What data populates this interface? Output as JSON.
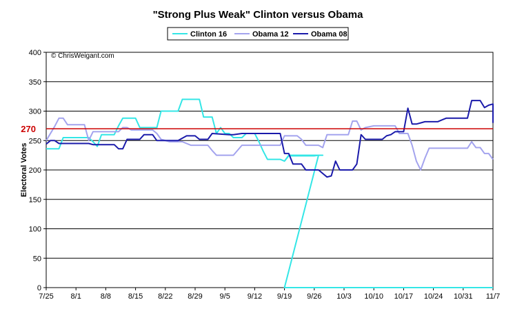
{
  "chart_data": {
    "type": "line",
    "title": "\"Strong Plus Weak\" Clinton versus Obama",
    "ylabel": "Electoral Votes",
    "xlabel": "",
    "ylim": [
      0,
      400
    ],
    "yticks": [
      0,
      50,
      100,
      150,
      200,
      250,
      300,
      350,
      400
    ],
    "x_tick_labels": [
      "7/25",
      "8/1",
      "8/8",
      "8/15",
      "8/22",
      "8/29",
      "9/5",
      "9/12",
      "9/19",
      "9/26",
      "10/3",
      "10/10",
      "10/17",
      "10/24",
      "10/31",
      "11/7"
    ],
    "x_unit": "days since 7/25",
    "xlim": [
      0,
      105
    ],
    "grid": true,
    "legend_position": "top-center",
    "credit": "© ChrisWeigant.com",
    "reference_line": {
      "value": 270,
      "label": "270",
      "color": "#cc0000"
    },
    "series": [
      {
        "name": "Clinton 16",
        "color": "#33e6e6",
        "points": [
          [
            0,
            236
          ],
          [
            3,
            236
          ],
          [
            4,
            255
          ],
          [
            10,
            255
          ],
          [
            11,
            248
          ],
          [
            12,
            240
          ],
          [
            13,
            260
          ],
          [
            16,
            260
          ],
          [
            17,
            275
          ],
          [
            18,
            288
          ],
          [
            21,
            288
          ],
          [
            22,
            272
          ],
          [
            26,
            272
          ],
          [
            27,
            300
          ],
          [
            31,
            300
          ],
          [
            32,
            320
          ],
          [
            36,
            320
          ],
          [
            37,
            290
          ],
          [
            39,
            290
          ],
          [
            40,
            262
          ],
          [
            41,
            272
          ],
          [
            42,
            262
          ],
          [
            43,
            262
          ],
          [
            44,
            255
          ],
          [
            46,
            255
          ],
          [
            47,
            262
          ],
          [
            49,
            262
          ],
          [
            50,
            248
          ],
          [
            51,
            232
          ],
          [
            52,
            218
          ],
          [
            53,
            218
          ],
          [
            55,
            218
          ],
          [
            56,
            215
          ],
          [
            57,
            224
          ],
          [
            58,
            224
          ],
          [
            63,
            224
          ],
          [
            64,
            225
          ],
          [
            65,
            225
          ],
          [
            57,
            225
          ],
          [
            56,
            215
          ],
          [
            57,
            225
          ],
          [
            64,
            225
          ],
          [
            56,
            0
          ],
          [
            105,
            0
          ]
        ]
      },
      {
        "name": "Obama 12",
        "color": "#a3a3ee",
        "points": [
          [
            0,
            250
          ],
          [
            2,
            274
          ],
          [
            3,
            288
          ],
          [
            4,
            288
          ],
          [
            5,
            277
          ],
          [
            8,
            277
          ],
          [
            9,
            277
          ],
          [
            10,
            250
          ],
          [
            11,
            265
          ],
          [
            13,
            265
          ],
          [
            17,
            265
          ],
          [
            18,
            272
          ],
          [
            19,
            272
          ],
          [
            20,
            268
          ],
          [
            25,
            268
          ],
          [
            26,
            262
          ],
          [
            27,
            252
          ],
          [
            29,
            248
          ],
          [
            32,
            248
          ],
          [
            34,
            242
          ],
          [
            38,
            242
          ],
          [
            39,
            233
          ],
          [
            40,
            225
          ],
          [
            44,
            225
          ],
          [
            46,
            242
          ],
          [
            48,
            242
          ],
          [
            50,
            242
          ],
          [
            51,
            242
          ],
          [
            53,
            242
          ],
          [
            55,
            242
          ],
          [
            56,
            258
          ],
          [
            58,
            258
          ],
          [
            59,
            258
          ],
          [
            60,
            252
          ],
          [
            61,
            242
          ],
          [
            64,
            242
          ],
          [
            65,
            238
          ],
          [
            66,
            260
          ],
          [
            69,
            260
          ],
          [
            71,
            260
          ],
          [
            72,
            283
          ],
          [
            73,
            283
          ],
          [
            74,
            268
          ],
          [
            75,
            272
          ],
          [
            77,
            275
          ],
          [
            80,
            275
          ],
          [
            82,
            275
          ],
          [
            83,
            262
          ],
          [
            85,
            262
          ],
          [
            86,
            242
          ],
          [
            87,
            215
          ],
          [
            88,
            200
          ],
          [
            89,
            220
          ],
          [
            90,
            237
          ],
          [
            93,
            237
          ],
          [
            99,
            237
          ],
          [
            100,
            248
          ],
          [
            101,
            238
          ],
          [
            102,
            238
          ],
          [
            103,
            228
          ],
          [
            104,
            228
          ],
          [
            105,
            218
          ]
        ]
      },
      {
        "name": "Obama 08",
        "color": "#1a1aaa",
        "points": [
          [
            0,
            244
          ],
          [
            1,
            250
          ],
          [
            2,
            250
          ],
          [
            3,
            245
          ],
          [
            10,
            245
          ],
          [
            11,
            243
          ],
          [
            13,
            243
          ],
          [
            16,
            243
          ],
          [
            17,
            236
          ],
          [
            18,
            236
          ],
          [
            19,
            252
          ],
          [
            22,
            252
          ],
          [
            23,
            260
          ],
          [
            25,
            260
          ],
          [
            26,
            250
          ],
          [
            31,
            250
          ],
          [
            33,
            258
          ],
          [
            35,
            258
          ],
          [
            36,
            252
          ],
          [
            38,
            252
          ],
          [
            39,
            262
          ],
          [
            43,
            260
          ],
          [
            44,
            260
          ],
          [
            46,
            262
          ],
          [
            48,
            262
          ],
          [
            50,
            262
          ],
          [
            51,
            262
          ],
          [
            52,
            262
          ],
          [
            53,
            262
          ],
          [
            54,
            262
          ],
          [
            55,
            262
          ],
          [
            56,
            228
          ],
          [
            57,
            228
          ],
          [
            58,
            210
          ],
          [
            60,
            210
          ],
          [
            61,
            200
          ],
          [
            64,
            200
          ],
          [
            66,
            188
          ],
          [
            67,
            190
          ],
          [
            68,
            215
          ],
          [
            69,
            200
          ],
          [
            71,
            200
          ],
          [
            72,
            200
          ],
          [
            73,
            210
          ],
          [
            74,
            260
          ],
          [
            75,
            252
          ],
          [
            78,
            252
          ],
          [
            79,
            252
          ],
          [
            80,
            258
          ],
          [
            81,
            260
          ],
          [
            82,
            265
          ],
          [
            84,
            265
          ],
          [
            85,
            305
          ],
          [
            86,
            278
          ],
          [
            87,
            278
          ],
          [
            88,
            280
          ],
          [
            89,
            282
          ],
          [
            92,
            282
          ],
          [
            93,
            285
          ],
          [
            94,
            288
          ],
          [
            97,
            288
          ],
          [
            99,
            288
          ],
          [
            100,
            318
          ],
          [
            102,
            318
          ],
          [
            103,
            306
          ],
          [
            104,
            310
          ],
          [
            105,
            312
          ],
          [
            107,
            312
          ],
          [
            108,
            280
          ]
        ]
      }
    ]
  }
}
